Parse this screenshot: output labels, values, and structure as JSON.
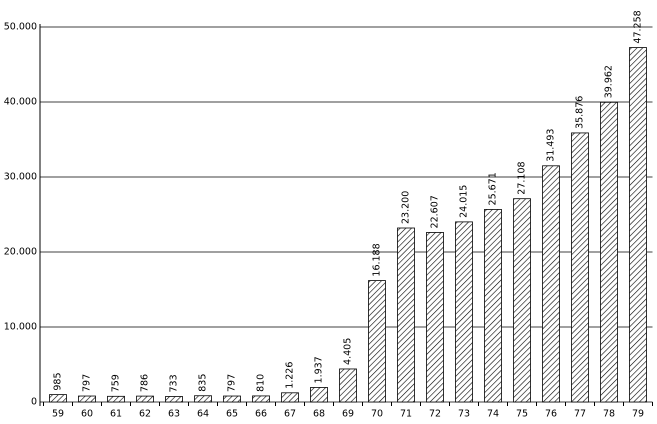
{
  "chart_data": {
    "type": "bar",
    "categories": [
      "59",
      "60",
      "61",
      "62",
      "63",
      "64",
      "65",
      "66",
      "67",
      "68",
      "69",
      "70",
      "71",
      "72",
      "73",
      "74",
      "75",
      "76",
      "77",
      "78",
      "79"
    ],
    "values": [
      985,
      797,
      759,
      786,
      733,
      835,
      797,
      810,
      1226,
      1937,
      4405,
      16188,
      23200,
      22607,
      24015,
      25671,
      27108,
      31493,
      35876,
      39962,
      47258
    ],
    "value_labels": [
      "985",
      "797",
      "759",
      "786",
      "733",
      "835",
      "797",
      "810",
      "1.226",
      "1.937",
      "4.405",
      "16.188",
      "23.200",
      "22.607",
      "24.015",
      "25.671",
      "27.108",
      "31.493",
      "35.876",
      "39.962",
      "47.258"
    ],
    "color": "#000000",
    "ylim": [
      0,
      50000
    ],
    "yticks": [
      0,
      {
        "value": 10000,
        "label": "10.000"
      },
      {
        "value": 20000,
        "label": "20.000"
      },
      {
        "value": 30000,
        "label": "30.000"
      },
      {
        "value": 40000,
        "label": "40.000"
      },
      {
        "value": 50000,
        "label": "50.000"
      }
    ],
    "grid": true
  }
}
